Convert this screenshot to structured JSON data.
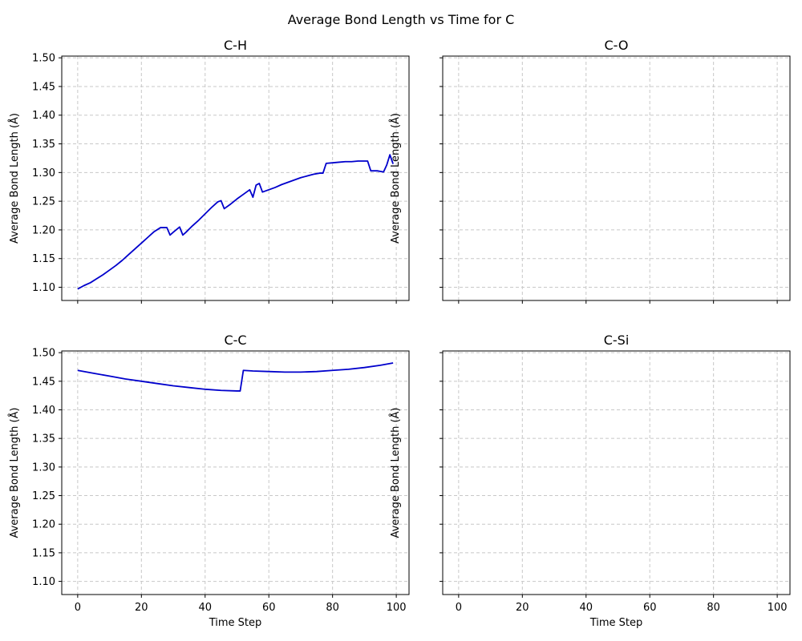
{
  "figure": {
    "suptitle": "Average Bond Length vs Time for C"
  },
  "chart_data": [
    {
      "type": "line",
      "title": "C-H",
      "xlabel": "",
      "ylabel": "Average Bond Length (Å)",
      "xlim": [
        -5,
        104
      ],
      "ylim": [
        1.077,
        1.503
      ],
      "xticks": [
        0,
        20,
        40,
        60,
        80,
        100
      ],
      "yticks": [
        1.1,
        1.15,
        1.2,
        1.25,
        1.3,
        1.35,
        1.4,
        1.45,
        1.5
      ],
      "ytick_labels": [
        "1.10",
        "1.15",
        "1.20",
        "1.25",
        "1.30",
        "1.35",
        "1.40",
        "1.45",
        "1.50"
      ],
      "grid": true,
      "series": [
        {
          "color": "#0000cc",
          "x": [
            0,
            2,
            4,
            6,
            8,
            10,
            12,
            14,
            16,
            18,
            20,
            22,
            24,
            26,
            28,
            29,
            30,
            32,
            33,
            34,
            36,
            38,
            40,
            42,
            44,
            45,
            46,
            48,
            50,
            52,
            54,
            55,
            56,
            57,
            58,
            60,
            62,
            64,
            66,
            68,
            70,
            72,
            74,
            76,
            77,
            78,
            80,
            82,
            84,
            86,
            88,
            90,
            91,
            92,
            94,
            96,
            97,
            98,
            99
          ],
          "y": [
            1.097,
            1.103,
            1.108,
            1.115,
            1.122,
            1.13,
            1.138,
            1.147,
            1.157,
            1.167,
            1.177,
            1.187,
            1.197,
            1.204,
            1.204,
            1.191,
            1.196,
            1.205,
            1.191,
            1.196,
            1.207,
            1.217,
            1.228,
            1.239,
            1.249,
            1.251,
            1.237,
            1.245,
            1.254,
            1.262,
            1.27,
            1.257,
            1.278,
            1.281,
            1.266,
            1.27,
            1.274,
            1.279,
            1.283,
            1.287,
            1.291,
            1.294,
            1.297,
            1.299,
            1.299,
            1.316,
            1.317,
            1.318,
            1.319,
            1.319,
            1.32,
            1.32,
            1.32,
            1.303,
            1.303,
            1.301,
            1.313,
            1.331,
            1.315
          ]
        }
      ]
    },
    {
      "type": "line",
      "title": "C-O",
      "xlabel": "",
      "ylabel": "Average Bond Length (Å)",
      "xlim": [
        -5,
        104
      ],
      "ylim": [
        1.077,
        1.503
      ],
      "xticks": [
        0,
        20,
        40,
        60,
        80,
        100
      ],
      "yticks": [
        1.1,
        1.15,
        1.2,
        1.25,
        1.3,
        1.35,
        1.4,
        1.45,
        1.5
      ],
      "grid": true,
      "series": []
    },
    {
      "type": "line",
      "title": "C-C",
      "xlabel": "Time Step",
      "ylabel": "Average Bond Length (Å)",
      "xlim": [
        -5,
        104
      ],
      "ylim": [
        1.077,
        1.503
      ],
      "xticks": [
        0,
        20,
        40,
        60,
        80,
        100
      ],
      "xtick_labels": [
        "0",
        "20",
        "40",
        "60",
        "80",
        "100"
      ],
      "yticks": [
        1.1,
        1.15,
        1.2,
        1.25,
        1.3,
        1.35,
        1.4,
        1.45,
        1.5
      ],
      "ytick_labels": [
        "1.10",
        "1.15",
        "1.20",
        "1.25",
        "1.30",
        "1.35",
        "1.40",
        "1.45",
        "1.50"
      ],
      "grid": true,
      "series": [
        {
          "color": "#0000cc",
          "x": [
            0,
            5,
            10,
            15,
            20,
            25,
            30,
            35,
            40,
            45,
            50,
            51,
            52,
            55,
            60,
            65,
            70,
            75,
            80,
            85,
            90,
            95,
            99
          ],
          "y": [
            1.469,
            1.464,
            1.459,
            1.454,
            1.45,
            1.446,
            1.442,
            1.439,
            1.436,
            1.434,
            1.433,
            1.433,
            1.469,
            1.468,
            1.467,
            1.466,
            1.466,
            1.467,
            1.469,
            1.471,
            1.474,
            1.478,
            1.482
          ]
        }
      ]
    },
    {
      "type": "line",
      "title": "C-Si",
      "xlabel": "Time Step",
      "ylabel": "Average Bond Length (Å)",
      "xlim": [
        -5,
        104
      ],
      "ylim": [
        1.077,
        1.503
      ],
      "xticks": [
        0,
        20,
        40,
        60,
        80,
        100
      ],
      "xtick_labels": [
        "0",
        "20",
        "40",
        "60",
        "80",
        "100"
      ],
      "yticks": [
        1.1,
        1.15,
        1.2,
        1.25,
        1.3,
        1.35,
        1.4,
        1.45,
        1.5
      ],
      "grid": true,
      "series": []
    }
  ]
}
